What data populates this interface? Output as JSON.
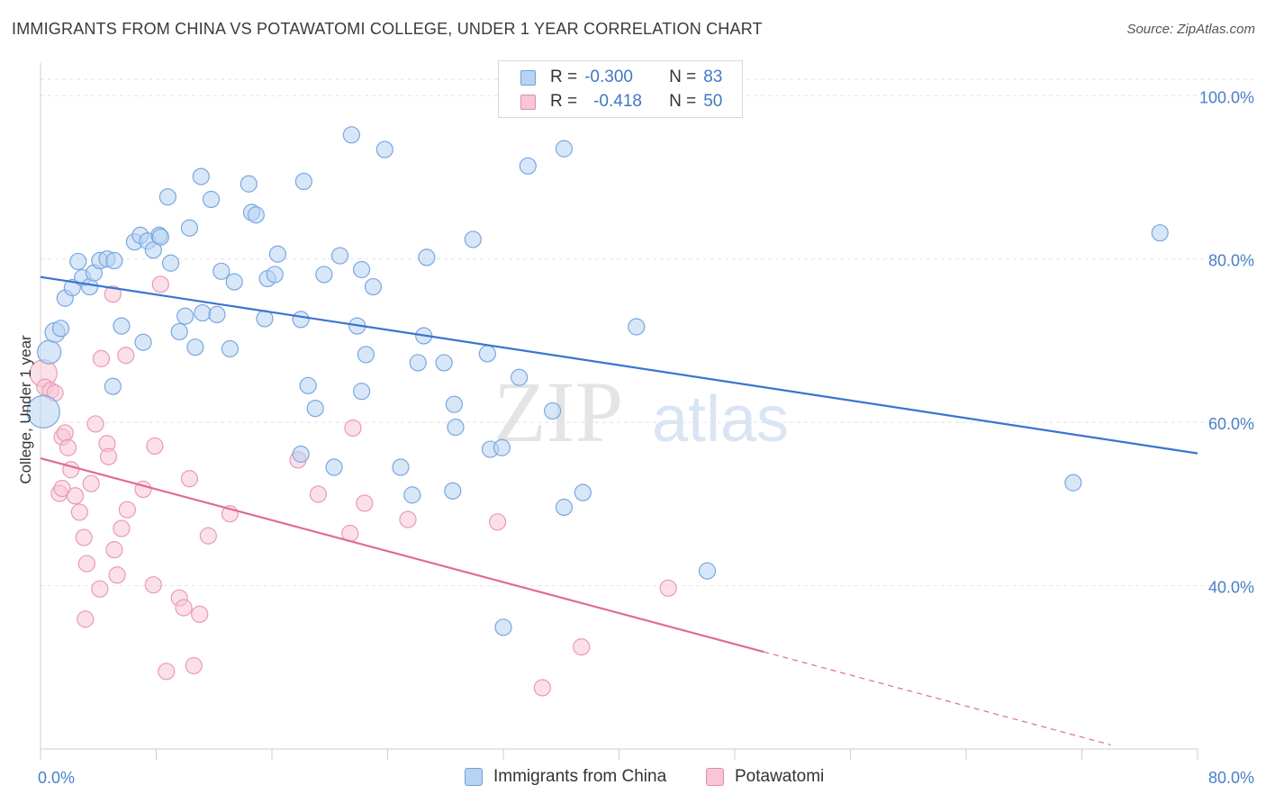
{
  "title": "IMMIGRANTS FROM CHINA VS POTAWATOMI COLLEGE, UNDER 1 YEAR CORRELATION CHART",
  "source": "Source: ZipAtlas.com",
  "watermark": {
    "zip": "ZIP",
    "atlas": "atlas"
  },
  "legend": {
    "r_label": "R =",
    "n_label": "N =",
    "rows": [
      {
        "r": "-0.300",
        "n": "83",
        "fill": "#b7d3f2",
        "stroke": "#6f9fd8"
      },
      {
        "r": "-0.418",
        "n": "50",
        "fill": "#f8c6d6",
        "stroke": "#e58aaa"
      }
    ]
  },
  "bottom_legend": [
    {
      "label": "Immigrants from China",
      "fill": "#b7d3f2",
      "stroke": "#6f9fd8"
    },
    {
      "label": "Potawatomi",
      "fill": "#f8c6d6",
      "stroke": "#e58aaa"
    }
  ],
  "colors": {
    "blue_line": "#3a74d0",
    "pink_line": "#e06a96",
    "blue_pt": "#7aa7df",
    "pink_pt": "#e99ab6"
  },
  "chart_data": {
    "type": "scatter",
    "xlabel": "",
    "ylabel": "College, Under 1 year",
    "xlim": [
      0,
      80
    ],
    "ylim": [
      20,
      104
    ],
    "x_ticks_labeled": [
      "0.0%",
      "80.0%"
    ],
    "y_ticks": [
      {
        "value": 100,
        "label": "100.0%"
      },
      {
        "value": 80,
        "label": "80.0%"
      },
      {
        "value": 60,
        "label": "60.0%"
      },
      {
        "value": 40,
        "label": "40.0%"
      }
    ],
    "grid": "horizontal dashed",
    "series": [
      {
        "name": "Immigrants from China",
        "r": -0.3,
        "n": 83,
        "trend": {
          "x0": 0,
          "y0": 77.8,
          "x1": 80,
          "y1": 56.2
        },
        "points": [
          [
            0.2,
            61.3,
            18
          ],
          [
            0.6,
            68.6,
            13
          ],
          [
            1.0,
            71.0,
            11
          ],
          [
            1.4,
            71.5,
            9
          ],
          [
            1.7,
            75.2,
            9
          ],
          [
            2.2,
            76.5,
            9
          ],
          [
            2.6,
            79.7,
            9
          ],
          [
            2.9,
            77.7,
            9
          ],
          [
            3.4,
            76.6,
            9
          ],
          [
            3.7,
            78.3,
            9
          ],
          [
            4.1,
            79.8,
            9
          ],
          [
            4.6,
            80.0,
            9
          ],
          [
            5.1,
            79.8,
            9
          ],
          [
            5.6,
            71.8,
            9
          ],
          [
            5.0,
            64.4,
            9
          ],
          [
            6.5,
            82.1,
            9
          ],
          [
            6.9,
            82.9,
            9
          ],
          [
            7.1,
            69.8,
            9
          ],
          [
            7.4,
            82.2,
            9
          ],
          [
            7.8,
            81.1,
            9
          ],
          [
            8.2,
            82.9,
            9
          ],
          [
            8.3,
            82.7,
            9
          ],
          [
            9.0,
            79.5,
            9
          ],
          [
            8.8,
            87.6,
            9
          ],
          [
            9.6,
            71.1,
            9
          ],
          [
            10.0,
            73.0,
            9
          ],
          [
            10.3,
            83.8,
            9
          ],
          [
            10.7,
            69.2,
            9
          ],
          [
            11.1,
            90.1,
            9
          ],
          [
            11.2,
            73.4,
            9
          ],
          [
            11.8,
            87.3,
            9
          ],
          [
            12.2,
            73.2,
            9
          ],
          [
            12.5,
            78.5,
            9
          ],
          [
            13.1,
            69.0,
            9
          ],
          [
            13.4,
            77.2,
            9
          ],
          [
            14.4,
            89.2,
            9
          ],
          [
            14.6,
            85.7,
            9
          ],
          [
            14.9,
            85.4,
            9
          ],
          [
            15.5,
            72.7,
            9
          ],
          [
            15.7,
            77.6,
            9
          ],
          [
            16.2,
            78.1,
            9
          ],
          [
            16.4,
            80.6,
            9
          ],
          [
            18.0,
            56.1,
            9
          ],
          [
            18.2,
            89.5,
            9
          ],
          [
            18.0,
            72.6,
            9
          ],
          [
            18.5,
            64.5,
            9
          ],
          [
            19.0,
            61.7,
            9
          ],
          [
            19.6,
            78.1,
            9
          ],
          [
            20.3,
            54.5,
            9
          ],
          [
            20.7,
            80.4,
            9
          ],
          [
            21.5,
            95.2,
            9
          ],
          [
            21.9,
            71.8,
            9
          ],
          [
            22.2,
            78.7,
            9
          ],
          [
            22.5,
            68.3,
            9
          ],
          [
            22.2,
            63.8,
            9
          ],
          [
            23.0,
            76.6,
            9
          ],
          [
            23.8,
            93.4,
            9
          ],
          [
            24.9,
            54.5,
            9
          ],
          [
            25.7,
            51.1,
            9
          ],
          [
            26.1,
            67.3,
            9
          ],
          [
            26.5,
            70.6,
            9
          ],
          [
            26.7,
            80.2,
            9
          ],
          [
            27.9,
            67.3,
            9
          ],
          [
            28.5,
            51.6,
            9
          ],
          [
            28.6,
            62.2,
            9
          ],
          [
            28.7,
            59.4,
            9
          ],
          [
            29.9,
            82.4,
            9
          ],
          [
            30.9,
            68.4,
            9
          ],
          [
            31.1,
            56.7,
            9
          ],
          [
            31.9,
            56.9,
            9
          ],
          [
            32.0,
            34.9,
            9
          ],
          [
            33.1,
            65.5,
            9
          ],
          [
            33.7,
            91.4,
            9
          ],
          [
            35.4,
            61.4,
            9
          ],
          [
            36.2,
            49.6,
            9
          ],
          [
            36.2,
            93.5,
            9
          ],
          [
            37.5,
            51.4,
            9
          ],
          [
            41.2,
            71.7,
            9
          ],
          [
            46.1,
            41.8,
            9
          ],
          [
            71.4,
            52.6,
            9
          ],
          [
            77.4,
            83.2,
            9
          ]
        ]
      },
      {
        "name": "Potawatomi",
        "r": -0.418,
        "n": 50,
        "trend": {
          "x0": 0,
          "y0": 55.6,
          "x1": 50,
          "y1": 31.9
        },
        "trend_dashed": {
          "x0": 50,
          "y0": 31.9,
          "x1": 74,
          "y1": 20.5
        },
        "points": [
          [
            0.2,
            66.0,
            15
          ],
          [
            0.3,
            64.3,
            9
          ],
          [
            0.7,
            63.9,
            9
          ],
          [
            1.0,
            63.6,
            9
          ],
          [
            1.3,
            51.3,
            9
          ],
          [
            1.5,
            51.9,
            9
          ],
          [
            1.5,
            58.2,
            9
          ],
          [
            1.7,
            58.7,
            9
          ],
          [
            1.9,
            56.9,
            9
          ],
          [
            2.1,
            54.2,
            9
          ],
          [
            2.4,
            51.0,
            9
          ],
          [
            2.7,
            49.0,
            9
          ],
          [
            3.0,
            45.9,
            9
          ],
          [
            3.1,
            35.9,
            9
          ],
          [
            3.2,
            42.7,
            9
          ],
          [
            3.5,
            52.5,
            9
          ],
          [
            3.8,
            59.8,
            9
          ],
          [
            4.1,
            39.6,
            9
          ],
          [
            4.2,
            67.8,
            9
          ],
          [
            4.6,
            57.4,
            9
          ],
          [
            4.7,
            55.8,
            9
          ],
          [
            5.0,
            75.7,
            9
          ],
          [
            5.1,
            44.4,
            9
          ],
          [
            5.3,
            41.3,
            9
          ],
          [
            5.6,
            47.0,
            9
          ],
          [
            5.9,
            68.2,
            9
          ],
          [
            6.0,
            49.3,
            9
          ],
          [
            7.1,
            51.8,
            9
          ],
          [
            7.8,
            40.1,
            9
          ],
          [
            7.9,
            57.1,
            9
          ],
          [
            8.3,
            76.9,
            9
          ],
          [
            8.7,
            29.5,
            9
          ],
          [
            9.6,
            38.5,
            9
          ],
          [
            9.9,
            37.3,
            9
          ],
          [
            10.3,
            53.1,
            9
          ],
          [
            10.6,
            30.2,
            9
          ],
          [
            11.0,
            36.5,
            9
          ],
          [
            11.6,
            46.1,
            9
          ],
          [
            13.1,
            48.8,
            9
          ],
          [
            17.8,
            55.4,
            9
          ],
          [
            19.2,
            51.2,
            9
          ],
          [
            21.4,
            46.4,
            9
          ],
          [
            21.6,
            59.3,
            9
          ],
          [
            22.4,
            50.1,
            9
          ],
          [
            25.4,
            48.1,
            9
          ],
          [
            31.6,
            47.8,
            9
          ],
          [
            34.7,
            27.5,
            9
          ],
          [
            37.4,
            32.5,
            9
          ],
          [
            43.4,
            39.7,
            9
          ]
        ]
      }
    ]
  }
}
